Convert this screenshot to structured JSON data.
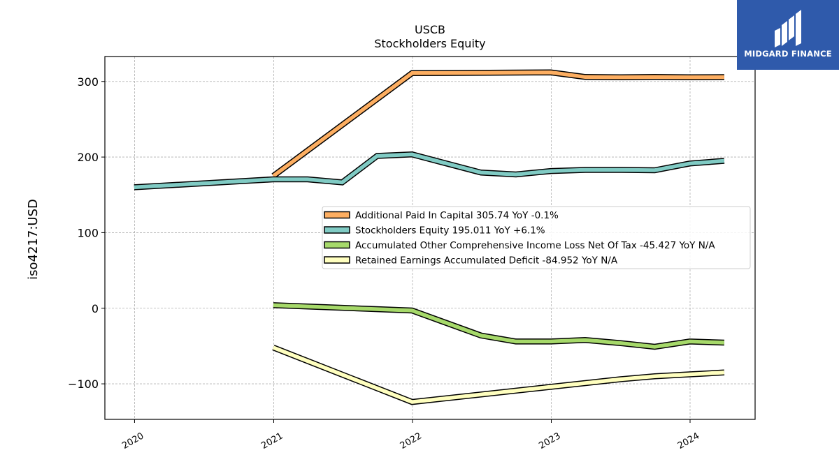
{
  "chart_data": {
    "type": "line",
    "title": "USCB",
    "subtitle": "Stockholders  Equity",
    "ylabel": "iso4217:USD",
    "xlabel": "",
    "ylim": [
      -147,
      333
    ],
    "xlim": [
      "2019-10-15",
      "2024-06-20"
    ],
    "yticks": [
      {
        "value": -100,
        "label": "−100"
      },
      {
        "value": 0,
        "label": "0"
      },
      {
        "value": 100,
        "label": "100"
      },
      {
        "value": 200,
        "label": "200"
      },
      {
        "value": 300,
        "label": "300"
      }
    ],
    "xticks": [
      {
        "date": "2020-01-01",
        "label": "2020"
      },
      {
        "date": "2021-01-01",
        "label": "2021"
      },
      {
        "date": "2022-01-01",
        "label": "2022"
      },
      {
        "date": "2023-01-01",
        "label": "2023"
      },
      {
        "date": "2024-01-01",
        "label": "2024"
      }
    ],
    "grid": true,
    "legend_position": "center-right",
    "series": [
      {
        "name": "Additional Paid In Capital  305.74 YoY -0.1%",
        "color": "#fdae61",
        "points": [
          {
            "x": "2020-12-31",
            "y": 175
          },
          {
            "x": "2021-12-31",
            "y": 311
          },
          {
            "x": "2022-12-31",
            "y": 312
          },
          {
            "x": "2023-03-31",
            "y": 306
          },
          {
            "x": "2023-06-30",
            "y": 305.5
          },
          {
            "x": "2023-09-30",
            "y": 306
          },
          {
            "x": "2023-12-31",
            "y": 305.5
          },
          {
            "x": "2024-03-31",
            "y": 305.74
          }
        ]
      },
      {
        "name": "Stockholders Equity  195.011 YoY +6.1%",
        "color": "#80cbc4",
        "points": [
          {
            "x": "2019-12-31",
            "y": 160
          },
          {
            "x": "2020-12-31",
            "y": 170.5
          },
          {
            "x": "2021-03-31",
            "y": 170.5
          },
          {
            "x": "2021-06-30",
            "y": 166.5
          },
          {
            "x": "2021-09-30",
            "y": 201.5
          },
          {
            "x": "2021-12-31",
            "y": 203.5
          },
          {
            "x": "2022-06-30",
            "y": 179.5
          },
          {
            "x": "2022-09-30",
            "y": 177
          },
          {
            "x": "2022-12-31",
            "y": 181.5
          },
          {
            "x": "2023-03-31",
            "y": 183
          },
          {
            "x": "2023-06-30",
            "y": 183
          },
          {
            "x": "2023-09-30",
            "y": 182.5
          },
          {
            "x": "2023-12-31",
            "y": 191.5
          },
          {
            "x": "2024-03-31",
            "y": 195.011
          }
        ]
      },
      {
        "name": "Accumulated Other Comprehensive Income Loss Net Of Tax  -45.427 YoY N/A",
        "color": "#a6d96a",
        "points": [
          {
            "x": "2020-12-31",
            "y": 4
          },
          {
            "x": "2021-12-31",
            "y": -3
          },
          {
            "x": "2022-06-30",
            "y": -36
          },
          {
            "x": "2022-09-30",
            "y": -44
          },
          {
            "x": "2022-12-31",
            "y": -44
          },
          {
            "x": "2023-03-31",
            "y": -42
          },
          {
            "x": "2023-06-30",
            "y": -46
          },
          {
            "x": "2023-09-30",
            "y": -51
          },
          {
            "x": "2023-12-31",
            "y": -44
          },
          {
            "x": "2024-03-31",
            "y": -45.427
          }
        ]
      },
      {
        "name": "Retained Earnings Accumulated Deficit  -84.952 YoY N/A",
        "color": "#ffffbf",
        "points": [
          {
            "x": "2020-12-31",
            "y": -52
          },
          {
            "x": "2021-12-31",
            "y": -124
          },
          {
            "x": "2022-12-31",
            "y": -104
          },
          {
            "x": "2023-06-30",
            "y": -94
          },
          {
            "x": "2023-09-30",
            "y": -90
          },
          {
            "x": "2023-12-31",
            "y": -87.5
          },
          {
            "x": "2024-03-31",
            "y": -84.952
          }
        ]
      }
    ]
  },
  "watermark": {
    "brand_text": "MIDGARD FINANCE",
    "background_color": "#2f5aab"
  }
}
